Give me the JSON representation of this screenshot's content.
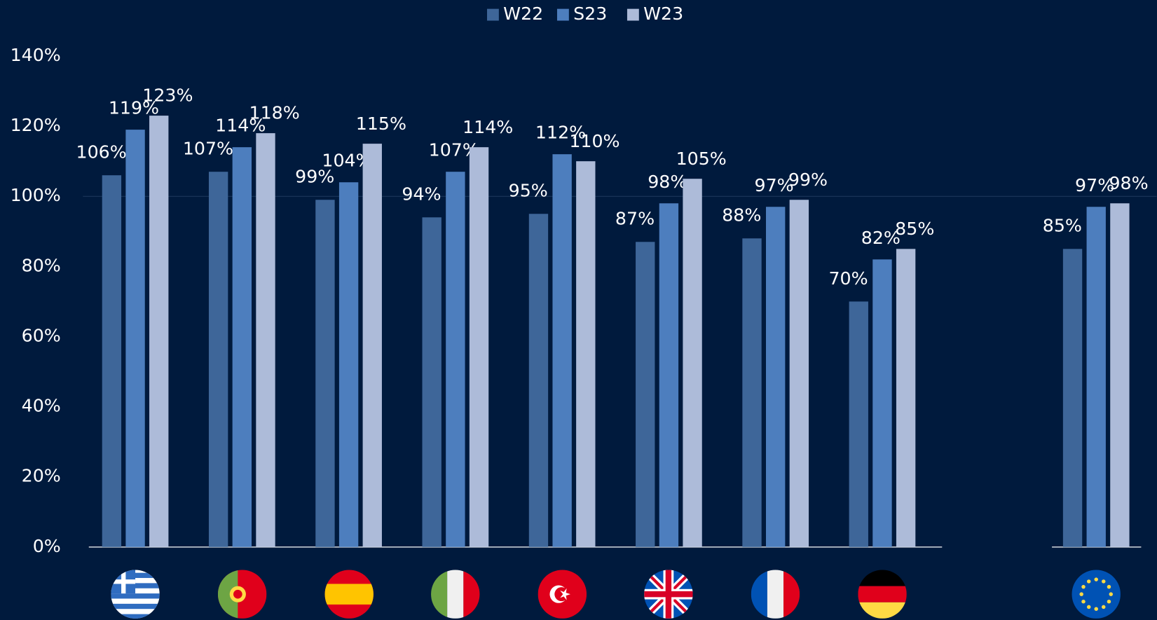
{
  "chart_data": {
    "type": "bar",
    "categories": [
      null,
      null,
      null,
      null,
      null,
      null,
      null,
      null,
      null
    ],
    "series": [
      {
        "name": "W22",
        "color": "#3e6699",
        "values": [
          106,
          107,
          99,
          94,
          95,
          87,
          88,
          70,
          85
        ],
        "value_labels": [
          "106%",
          "107%",
          "99%",
          "94%",
          "95%",
          "87%",
          "88%",
          "70%",
          "85%"
        ]
      },
      {
        "name": "S23",
        "color": "#4d7ebe",
        "values": [
          119,
          114,
          104,
          107,
          112,
          98,
          97,
          82,
          97
        ],
        "value_labels": [
          "119%",
          "114%",
          "104%",
          "107%",
          "112%",
          "98%",
          "97%",
          "82%",
          "97%"
        ]
      },
      {
        "name": "W23",
        "color": "#adbbd9",
        "values": [
          123,
          118,
          115,
          114,
          110,
          105,
          99,
          85,
          98
        ],
        "value_labels": [
          "123%",
          "118%",
          "115%",
          "114%",
          "110%",
          "105%",
          "99%",
          "85%",
          "98%"
        ]
      }
    ],
    "ylim": [
      0,
      140
    ],
    "yticks": [
      {
        "value": 0,
        "label": "0%"
      },
      {
        "value": 20,
        "label": "20%"
      },
      {
        "value": 40,
        "label": "40%"
      },
      {
        "value": 60,
        "label": "60%"
      },
      {
        "value": 80,
        "label": "80%"
      },
      {
        "value": 100,
        "label": "100%"
      },
      {
        "value": 120,
        "label": "120%"
      },
      {
        "value": 140,
        "label": "140%"
      }
    ],
    "reference_line": 100,
    "legend": "top"
  }
}
